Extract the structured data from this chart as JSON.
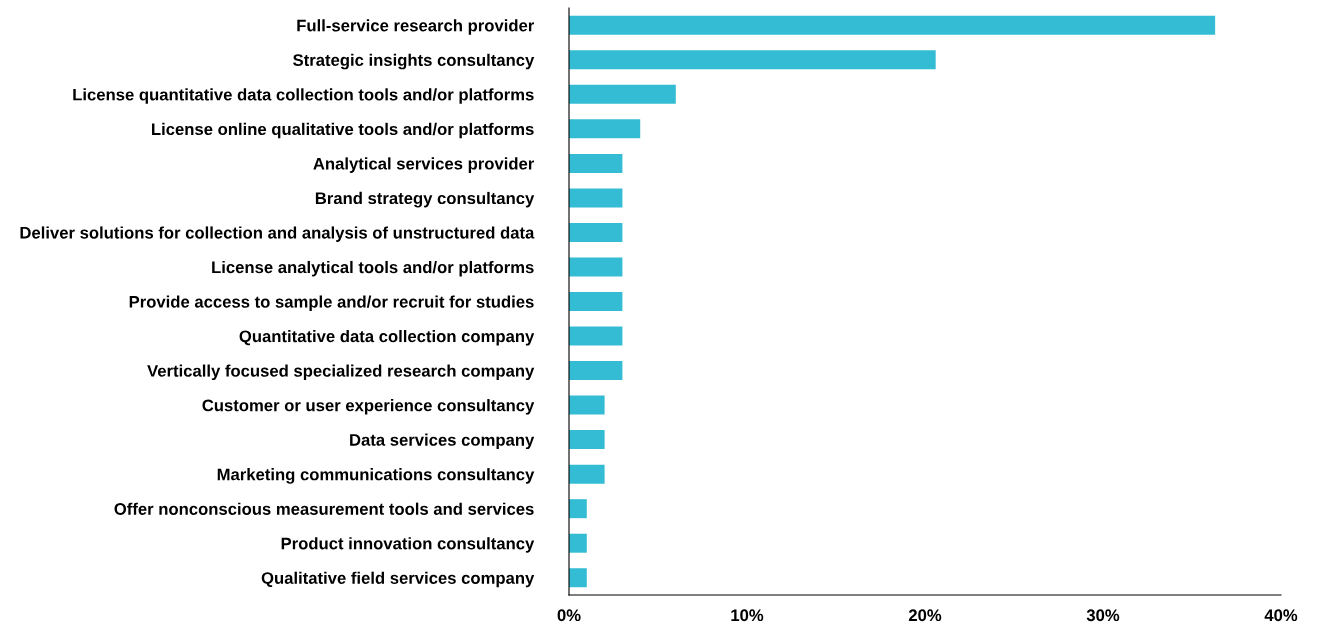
{
  "chart_data": {
    "type": "bar",
    "orientation": "horizontal",
    "categories": [
      "Full-service research provider",
      "Strategic insights consultancy",
      "License quantitative data collection tools and/or platforms",
      "License online qualitative tools and/or platforms",
      "Analytical services provider",
      "Brand strategy consultancy",
      "Deliver solutions for collection and analysis of unstructured data",
      "License analytical tools and/or platforms",
      "Provide access to sample and/or recruit for studies",
      "Quantitative data collection company",
      "Vertically focused specialized research company",
      "Customer or user experience consultancy",
      "Data services company",
      "Marketing communications consultancy",
      "Offer nonconscious measurement tools and services",
      "Product innovation consultancy",
      "Qualitative field services company"
    ],
    "values": [
      36.3,
      20.6,
      6,
      4,
      3,
      3,
      3,
      3,
      3,
      3,
      3,
      2,
      2,
      2,
      1,
      1,
      1
    ],
    "color": "#33bcd3",
    "xlim": [
      0,
      40
    ],
    "xticks": [
      {
        "value": 0,
        "label": "0%"
      },
      {
        "value": 10,
        "label": "10%"
      },
      {
        "value": 20,
        "label": "20%"
      },
      {
        "value": 30,
        "label": "30%"
      },
      {
        "value": 40,
        "label": "40%"
      }
    ],
    "grid": false,
    "legend": false
  }
}
